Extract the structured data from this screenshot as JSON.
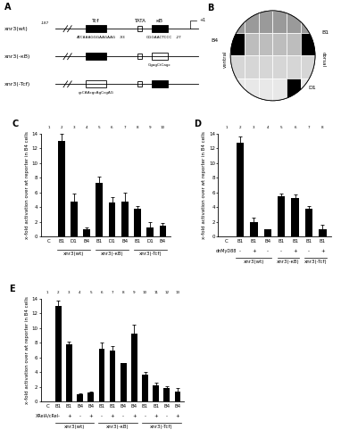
{
  "diagram_a": {
    "label": "A",
    "start": "-187",
    "tcf": "Tcf",
    "tata": "TATA",
    "kb": "κB",
    "tss": "+1",
    "constructs": [
      {
        "name": "xnr3(wt)",
        "tcf_seq": "ATCAAAGGGAAGAAG",
        "tcf_pos": "-93",
        "kb_seq": "GGGAACTCCC",
        "kb_pos": "-27"
      },
      {
        "name": "xnr3(-κB)",
        "kb_mut": "GgagCtCagc"
      },
      {
        "name": "xnr3(-Tcf)",
        "tcf_mut": "gcCAAcgcAgCcgAG"
      }
    ]
  },
  "diagram_b": {
    "label": "B",
    "cells": [
      "B4",
      "B1",
      "D1"
    ],
    "sides": [
      "ventral",
      "dorsal"
    ]
  },
  "chart_data": [
    {
      "type": "bar",
      "label": "C",
      "y_label": "x-fold activation over wt reporter in B4 cells",
      "color": "#000000",
      "column_numbers": [
        1,
        2,
        3,
        4,
        5,
        6,
        7,
        8,
        9,
        10
      ],
      "categories": [
        "C",
        "B1",
        "D1",
        "B4",
        "B1",
        "D1",
        "B4",
        "B1",
        "D1",
        "B4"
      ],
      "groups": [
        null,
        "xnr3(wt)",
        "xnr3(wt)",
        "xnr3(wt)",
        "xnr3(-κB)",
        "xnr3(-κB)",
        "xnr3(-κB)",
        "xnr3(-Tcf)",
        "xnr3(-Tcf)",
        "xnr3(-Tcf)"
      ],
      "values": [
        0,
        13,
        4.7,
        1.0,
        7.3,
        4.6,
        4.7,
        3.8,
        1.2,
        1.5
      ],
      "errors": [
        null,
        1.0,
        1.2,
        0.2,
        0.8,
        0.8,
        1.3,
        0.3,
        0.7,
        0.3
      ],
      "ylim": [
        0,
        14
      ],
      "yticks": [
        0,
        2,
        4,
        6,
        8,
        10,
        12,
        14
      ]
    },
    {
      "type": "bar",
      "label": "D",
      "y_label": "x-fold activation over wt reporter in B4 cells",
      "color": "#000000",
      "column_numbers": [
        1,
        2,
        3,
        4,
        5,
        6,
        7,
        8
      ],
      "categories": [
        "C",
        "B1",
        "B1",
        "B4",
        "B1",
        "B1",
        "B1",
        "B1"
      ],
      "row_label": "dnMyD88",
      "row": [
        null,
        "-",
        "+",
        "-",
        "-",
        "+",
        "-",
        "+"
      ],
      "groups": [
        null,
        "xnr3(wt)",
        "xnr3(wt)",
        "xnr3(wt)",
        "xnr3(-κB)",
        "xnr3(-κB)",
        "xnr3(-Tcf)",
        "xnr3(-Tcf)"
      ],
      "values": [
        0,
        12.8,
        2.0,
        1.0,
        5.5,
        5.2,
        3.8,
        1.0
      ],
      "errors": [
        null,
        0.8,
        0.6,
        null,
        0.4,
        0.5,
        0.4,
        0.6
      ],
      "ylim": [
        0,
        14
      ],
      "yticks": [
        0,
        2,
        4,
        6,
        8,
        10,
        12,
        14
      ]
    },
    {
      "type": "bar",
      "label": "E",
      "y_label": "x-fold activation over wt reporter in B4 cells",
      "color": "#000000",
      "column_numbers": [
        1,
        2,
        3,
        4,
        5,
        6,
        7,
        8,
        9,
        10,
        11,
        12,
        13
      ],
      "categories": [
        "C",
        "B1",
        "B1",
        "B4",
        "B4",
        "B1",
        "B1",
        "B4",
        "B4",
        "B1",
        "B1",
        "B4",
        "B4"
      ],
      "row_label": "XRelA/cRel",
      "row": [
        null,
        "-",
        "+",
        "-",
        "+",
        "-",
        "+",
        "-",
        "+",
        "-",
        "+",
        "-",
        "+"
      ],
      "groups": [
        null,
        "xnr3(wt)",
        "xnr3(wt)",
        "xnr3(wt)",
        "xnr3(wt)",
        "xnr3(-κB)",
        "xnr3(-κB)",
        "xnr3(-κB)",
        "xnr3(-κB)",
        "xnr3(-Tcf)",
        "xnr3(-Tcf)",
        "xnr3(-Tcf)",
        "xnr3(-Tcf)"
      ],
      "values": [
        0,
        13,
        7.8,
        1.0,
        1.2,
        7.2,
        7.0,
        5.2,
        9.3,
        3.7,
        2.2,
        1.8,
        1.4
      ],
      "errors": [
        null,
        0.7,
        0.3,
        0.1,
        0.2,
        0.8,
        0.6,
        null,
        1.2,
        0.3,
        0.4,
        0.3,
        0.4
      ],
      "ylim": [
        0,
        14
      ],
      "yticks": [
        0,
        2,
        4,
        6,
        8,
        10,
        12,
        14
      ]
    }
  ]
}
